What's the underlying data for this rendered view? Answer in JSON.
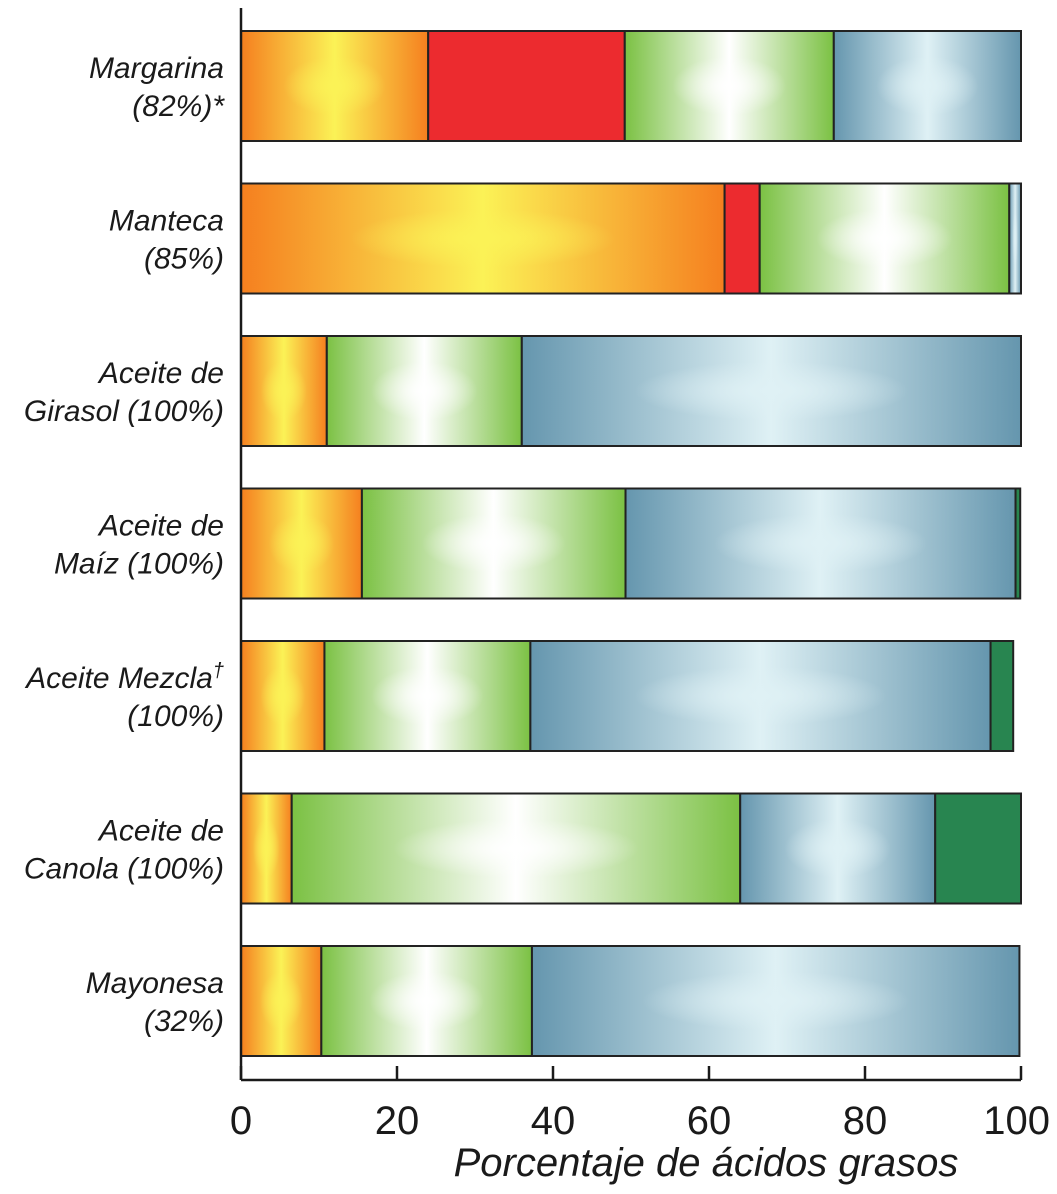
{
  "chart_data": {
    "type": "bar",
    "orientation": "horizontal",
    "stacked": true,
    "xlabel": "Porcentaje de ácidos grasos",
    "xlim": [
      0,
      100
    ],
    "xticks": [
      "0",
      "20",
      "40",
      "60",
      "80",
      "100"
    ],
    "grid": false,
    "legend": "none",
    "categories": [
      {
        "line1": "Margarina",
        "line2": "(82%)*",
        "sup": ""
      },
      {
        "line1": "Manteca",
        "line2": "(85%)",
        "sup": ""
      },
      {
        "line1": "Aceite de",
        "line2": "Girasol (100%)",
        "sup": ""
      },
      {
        "line1": "Aceite de",
        "line2": "Maíz (100%)",
        "sup": ""
      },
      {
        "line1": "Aceite Mezcla",
        "line2": "(100%)",
        "sup": "†"
      },
      {
        "line1": "Aceite de",
        "line2": "Canola (100%)",
        "sup": ""
      },
      {
        "line1": "Mayonesa",
        "line2": "(32%)",
        "sup": ""
      }
    ],
    "series": [
      {
        "color_edge": "#f57f1f",
        "color_center": "#fbf256",
        "values": [
          24.0,
          62.0,
          11.0,
          15.5,
          10.7,
          6.5,
          10.3
        ]
      },
      {
        "color_edge": "#ec2b2f",
        "color_center": "#ec2b2f",
        "values": [
          25.2,
          4.5,
          0,
          0,
          0,
          0,
          0
        ]
      },
      {
        "color_edge": "#7bc143",
        "color_center": "#ffffff",
        "values": [
          26.8,
          32.0,
          25.0,
          33.8,
          26.4,
          57.5,
          27.0
        ]
      },
      {
        "color_edge": "#6596ae",
        "color_center": "#dff1f5",
        "values": [
          24.0,
          1.5,
          64.0,
          50.0,
          59.0,
          25.0,
          62.5
        ]
      },
      {
        "color_edge": "#288550",
        "color_center": "#288550",
        "values": [
          0,
          0,
          0,
          0.6,
          2.9,
          11.0,
          0
        ]
      }
    ]
  }
}
